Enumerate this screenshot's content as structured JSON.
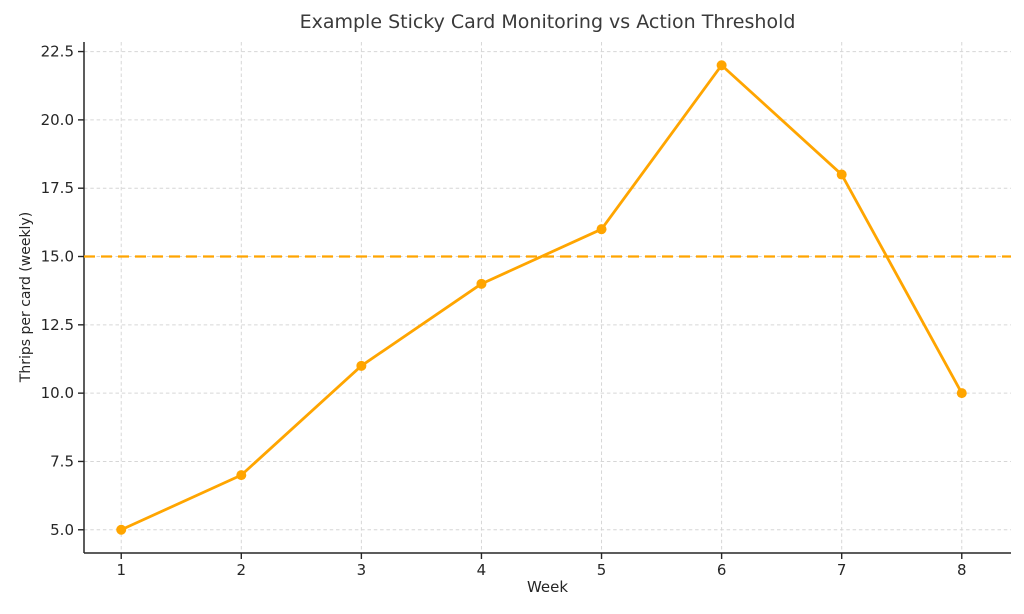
{
  "chart_data": {
    "type": "line",
    "title": "Example Sticky Card Monitoring vs Action Threshold",
    "xlabel": "Week",
    "ylabel": "Thrips per card (weekly)",
    "x": [
      1,
      2,
      3,
      4,
      5,
      6,
      7,
      8
    ],
    "series": [
      {
        "name": "Thrips per card (weekly)",
        "values": [
          5,
          7,
          11,
          14,
          16,
          22,
          18,
          10
        ],
        "color": "#FFA500",
        "line_style": "solid",
        "line_width": 2.8,
        "marker": "circle",
        "marker_radius": 5
      }
    ],
    "threshold_line": {
      "value": 15,
      "color": "#FFA500",
      "line_style": "dashed",
      "line_width": 2.3
    },
    "xticks": [
      1,
      2,
      3,
      4,
      5,
      6,
      7,
      8
    ],
    "xtick_labels": [
      "1",
      "2",
      "3",
      "4",
      "5",
      "6",
      "7",
      "8"
    ],
    "yticks": [
      5.0,
      7.5,
      10.0,
      12.5,
      15.0,
      17.5,
      20.0,
      22.5
    ],
    "ytick_labels": [
      "5.0",
      "7.5",
      "10.0",
      "12.5",
      "15.0",
      "17.5",
      "20.0",
      "22.5"
    ],
    "xlim": [
      0.69,
      8.41
    ],
    "ylim": [
      4.15,
      22.85
    ],
    "grid": true,
    "grid_style": "dashed",
    "grid_color": "#d6d6d6",
    "legend": "none",
    "spines": [
      "left",
      "bottom"
    ],
    "axis_color": "#262626",
    "text_color": "#262626",
    "title_color": "#3a3a3a",
    "background_color": "#ffffff"
  }
}
